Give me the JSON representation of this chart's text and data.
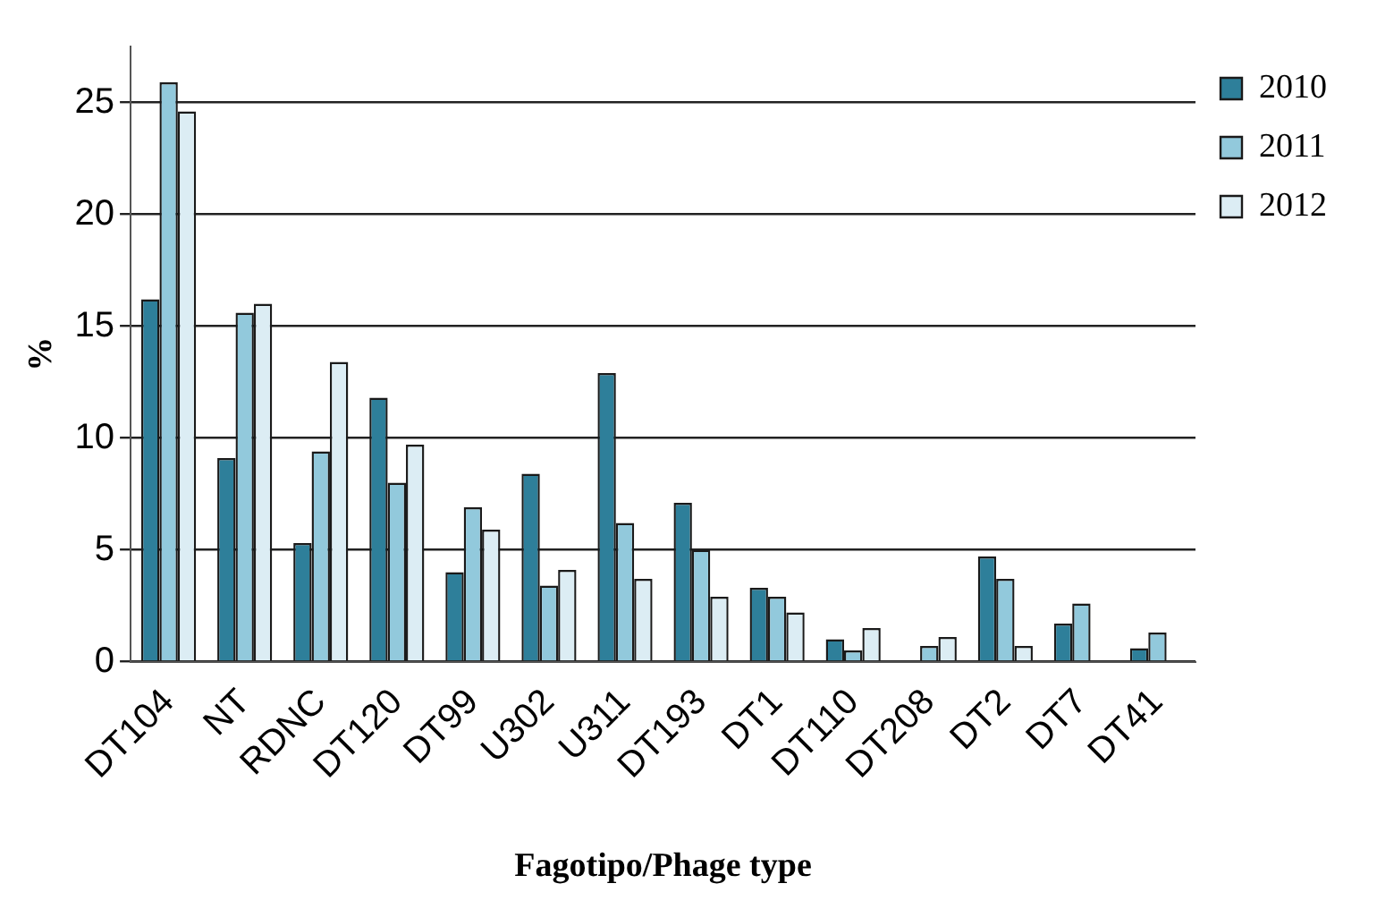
{
  "chart_data": {
    "type": "bar",
    "xlabel": "Fagotipo/Phage type",
    "ylabel": "%",
    "categories": [
      "DT104",
      "NT",
      "RDNC",
      "DT120",
      "DT99",
      "U302",
      "U311",
      "DT193",
      "DT1",
      "DT110",
      "DT208",
      "DT2",
      "DT7",
      "DT41"
    ],
    "series": [
      {
        "name": "2010",
        "color": "#2e7f9a",
        "values": [
          16.2,
          9.1,
          5.3,
          11.8,
          4.0,
          8.4,
          12.9,
          7.1,
          3.3,
          1.0,
          null,
          4.7,
          1.7,
          0.6
        ]
      },
      {
        "name": "2011",
        "color": "#92c9dc",
        "values": [
          25.9,
          15.6,
          9.4,
          8.0,
          6.9,
          3.4,
          6.2,
          5.0,
          2.9,
          0.5,
          0.7,
          3.7,
          2.6,
          1.3
        ]
      },
      {
        "name": "2012",
        "color": "#dcedf4",
        "values": [
          24.6,
          16.0,
          13.4,
          9.7,
          5.9,
          4.1,
          3.7,
          2.9,
          2.2,
          1.5,
          1.1,
          0.7,
          null,
          null
        ]
      }
    ],
    "ylim": [
      0,
      27.5
    ],
    "yticks": [
      0,
      5,
      10,
      15,
      20,
      25
    ],
    "grid": "y",
    "legend": "top right"
  }
}
